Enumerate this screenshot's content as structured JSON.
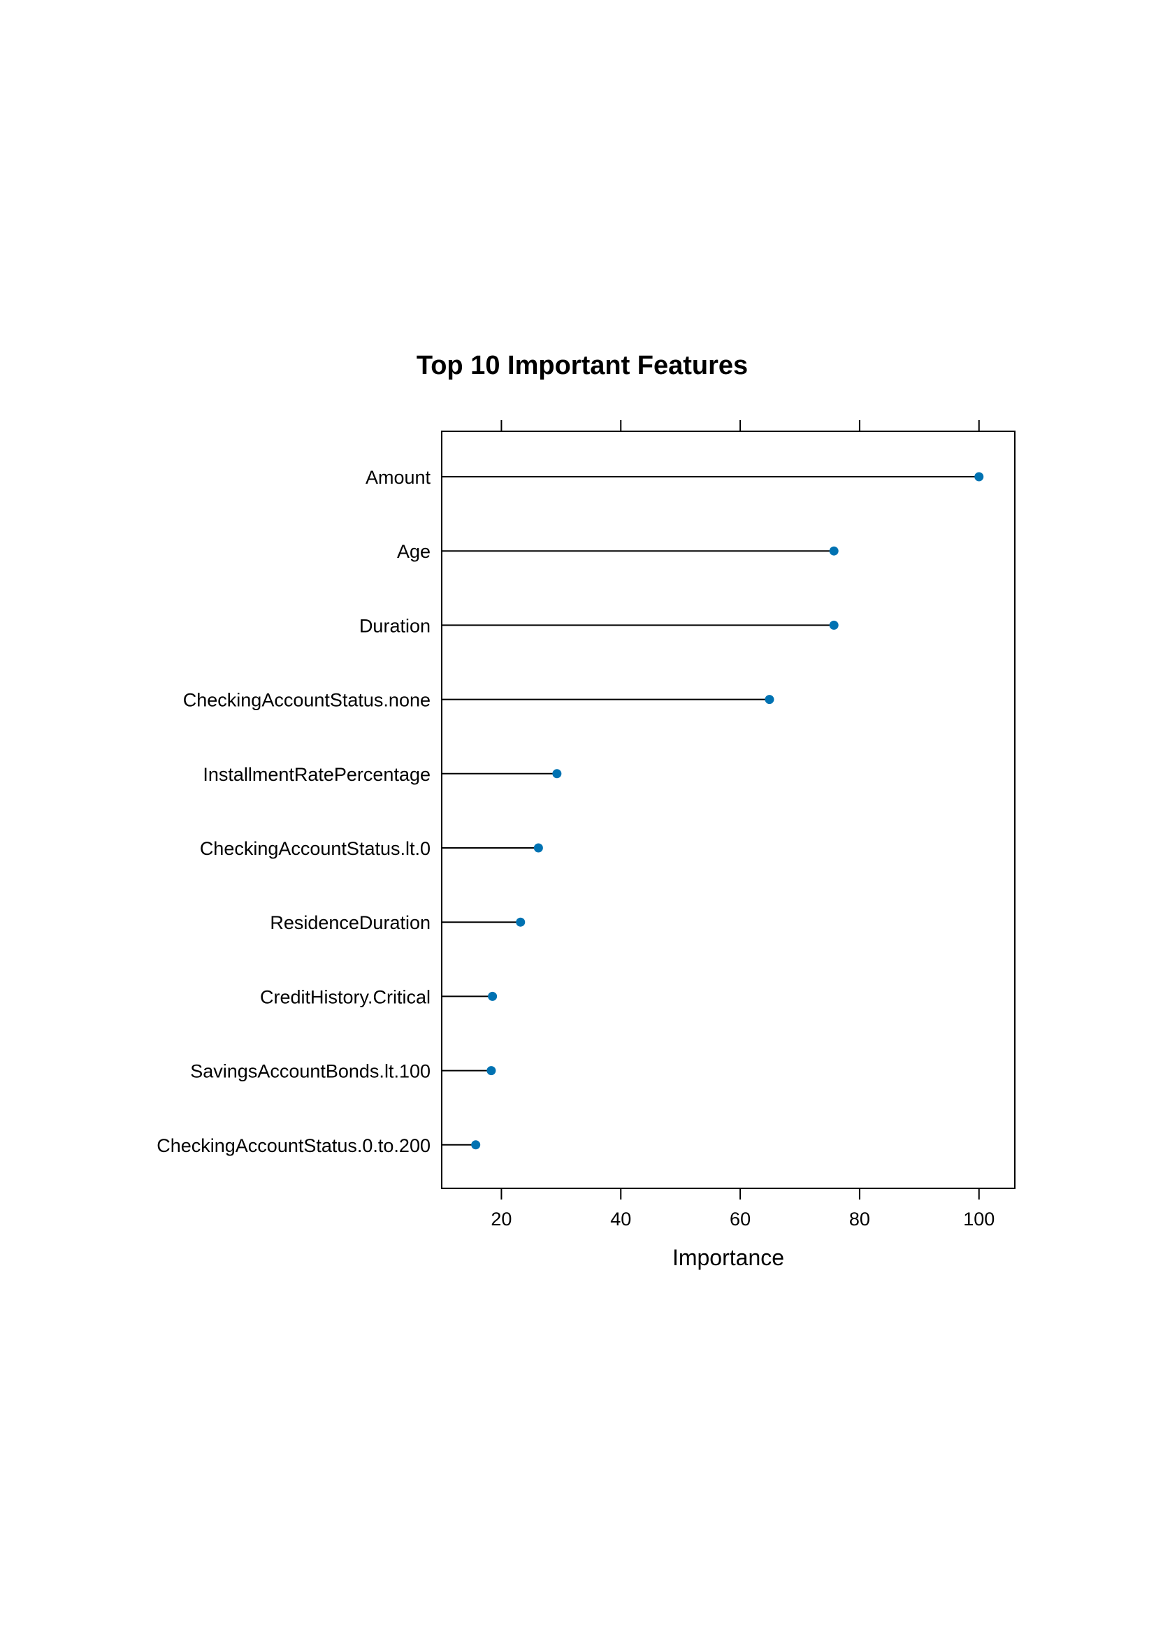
{
  "chart_data": {
    "type": "dot",
    "title": "Top 10 Important Features",
    "xlabel": "Importance",
    "ylabel": "",
    "xlim": [
      10,
      106
    ],
    "xticks": [
      20,
      40,
      60,
      80,
      100
    ],
    "grid": false,
    "categories": [
      "Amount",
      "Age",
      "Duration",
      "CheckingAccountStatus.none",
      "InstallmentRatePercentage",
      "CheckingAccountStatus.lt.0",
      "ResidenceDuration",
      "CreditHistory.Critical",
      "SavingsAccountBonds.lt.100",
      "CheckingAccountStatus.0.to.200"
    ],
    "values": [
      100,
      75.7,
      75.7,
      64.9,
      29.3,
      26.2,
      23.2,
      18.5,
      18.3,
      15.7
    ],
    "colors": {
      "point": "#0072b2",
      "line": "#000000",
      "frame": "#000000"
    }
  }
}
